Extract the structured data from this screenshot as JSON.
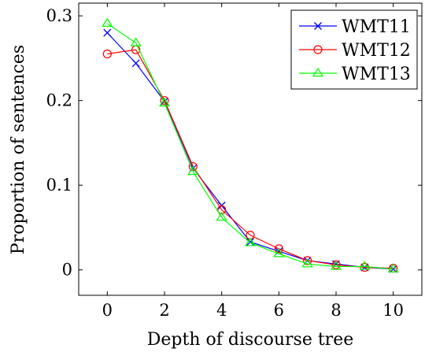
{
  "chart_data": {
    "type": "line",
    "xlabel": "Depth of discourse tree",
    "ylabel": "Proportion of sentences",
    "xlim": [
      -1,
      11
    ],
    "ylim": [
      -0.03,
      0.315
    ],
    "xticks": [
      0,
      2,
      4,
      6,
      8,
      10
    ],
    "yticks": [
      0,
      0.1,
      0.2,
      0.3
    ],
    "xtick_labels": [
      "0",
      "2",
      "4",
      "6",
      "8",
      "10"
    ],
    "ytick_labels": [
      "0",
      "0.1",
      "0.2",
      "0.3"
    ],
    "x": [
      0,
      1,
      2,
      3,
      4,
      5,
      6,
      7,
      8,
      9,
      10
    ],
    "legend_position": "top-right",
    "grid": false,
    "series": [
      {
        "name": "WMT11",
        "color": "#0000ff",
        "marker": "x",
        "values": [
          0.28,
          0.244,
          0.199,
          0.12,
          0.076,
          0.033,
          0.022,
          0.011,
          0.007,
          0.003,
          0.001
        ]
      },
      {
        "name": "WMT12",
        "color": "#ff0000",
        "marker": "circle",
        "values": [
          0.255,
          0.26,
          0.2,
          0.122,
          0.071,
          0.041,
          0.025,
          0.011,
          0.006,
          0.003,
          0.002
        ]
      },
      {
        "name": "WMT13",
        "color": "#00ff00",
        "marker": "triangle",
        "values": [
          0.291,
          0.268,
          0.197,
          0.116,
          0.062,
          0.032,
          0.019,
          0.007,
          0.004,
          0.004,
          0.001
        ]
      }
    ]
  }
}
